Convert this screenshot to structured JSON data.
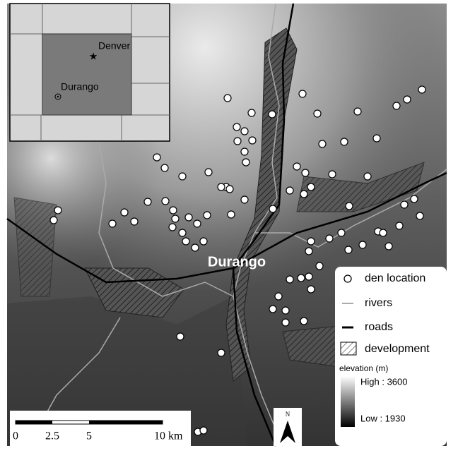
{
  "inset": {
    "capital": "Denver",
    "town": "Durango"
  },
  "map": {
    "town_label": "Durango"
  },
  "legend": {
    "items": [
      "den location",
      "rivers",
      "roads",
      "development"
    ],
    "elevation_title": "elevation (m)",
    "high": "High : 3600",
    "low": "Low : 1930"
  },
  "scale_bar": {
    "labels": [
      "0",
      "2.5",
      "5",
      "10 km"
    ]
  },
  "north_arrow": {
    "label": "N"
  }
}
